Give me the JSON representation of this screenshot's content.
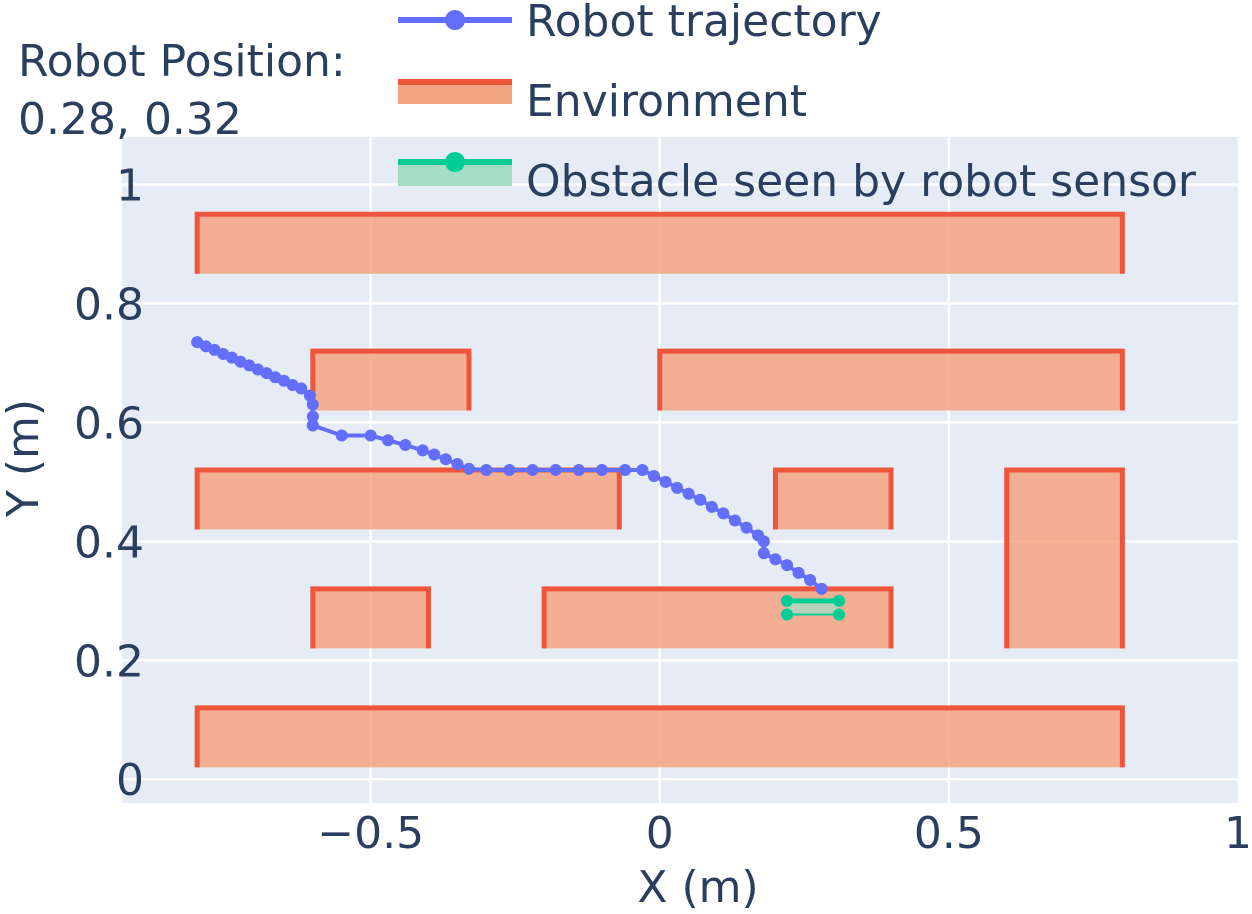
{
  "robot_position": {
    "label": "Robot Position:",
    "value": "0.28, 0.32"
  },
  "colors": {
    "plot_bg": "#e5ecf6",
    "grid": "#ffffff",
    "text": "#2a3f5f",
    "trajectory": "#636efa",
    "environment_line": "#ef553b",
    "environment_fill": "#f4a582",
    "obstacle_line": "#00cc96",
    "obstacle_fill": "#a3ddc6"
  },
  "chart_data": {
    "type": "scatter",
    "xlabel": "X (m)",
    "ylabel": "Y (m)",
    "xlim": [
      -0.93,
      1.0
    ],
    "ylim": [
      -0.04,
      1.08
    ],
    "grid": true,
    "legend_position": "top",
    "x_ticks": [
      {
        "value": -0.5,
        "label": "−0.5"
      },
      {
        "value": 0,
        "label": "0"
      },
      {
        "value": 0.5,
        "label": "0.5"
      },
      {
        "value": 1,
        "label": "1"
      }
    ],
    "y_ticks": [
      {
        "value": 0,
        "label": "0"
      },
      {
        "value": 0.2,
        "label": "0.2"
      },
      {
        "value": 0.4,
        "label": "0.4"
      },
      {
        "value": 0.6,
        "label": "0.6"
      },
      {
        "value": 0.8,
        "label": "0.8"
      },
      {
        "value": 1,
        "label": "1"
      }
    ],
    "legend": [
      {
        "name": "Robot trajectory",
        "kind": "line-marker"
      },
      {
        "name": "Environment",
        "kind": "fill"
      },
      {
        "name": "Obstacle seen by robot sensor",
        "kind": "fill-marker"
      }
    ],
    "series": [
      {
        "name": "Robot trajectory",
        "type": "line+markers",
        "x": [
          -0.8,
          -0.785,
          -0.77,
          -0.755,
          -0.74,
          -0.725,
          -0.71,
          -0.695,
          -0.68,
          -0.665,
          -0.65,
          -0.635,
          -0.62,
          -0.605,
          -0.6,
          -0.6,
          -0.6,
          -0.6,
          -0.55,
          -0.5,
          -0.47,
          -0.44,
          -0.41,
          -0.39,
          -0.37,
          -0.35,
          -0.33,
          -0.3,
          -0.26,
          -0.22,
          -0.18,
          -0.14,
          -0.1,
          -0.06,
          -0.03,
          -0.01,
          0.01,
          0.03,
          0.05,
          0.07,
          0.09,
          0.11,
          0.13,
          0.15,
          0.17,
          0.18,
          0.18,
          0.2,
          0.22,
          0.24,
          0.26,
          0.28
        ],
        "y": [
          0.735,
          0.728,
          0.722,
          0.715,
          0.709,
          0.702,
          0.696,
          0.689,
          0.683,
          0.676,
          0.67,
          0.663,
          0.657,
          0.645,
          0.63,
          0.61,
          0.595,
          0.595,
          0.578,
          0.578,
          0.57,
          0.562,
          0.553,
          0.546,
          0.538,
          0.53,
          0.522,
          0.52,
          0.52,
          0.52,
          0.52,
          0.52,
          0.52,
          0.52,
          0.52,
          0.51,
          0.5,
          0.49,
          0.48,
          0.47,
          0.458,
          0.447,
          0.435,
          0.423,
          0.41,
          0.4,
          0.38,
          0.37,
          0.36,
          0.347,
          0.335,
          0.32
        ]
      }
    ],
    "environment": [
      {
        "x0": -0.8,
        "x1": 0.8,
        "y0": 0.85,
        "y1": 0.95
      },
      {
        "x0": -0.6,
        "x1": -0.33,
        "y0": 0.62,
        "y1": 0.72
      },
      {
        "x0": 0.0,
        "x1": 0.8,
        "y0": 0.62,
        "y1": 0.72
      },
      {
        "x0": -0.8,
        "x1": -0.07,
        "y0": 0.42,
        "y1": 0.52
      },
      {
        "x0": 0.2,
        "x1": 0.4,
        "y0": 0.42,
        "y1": 0.52
      },
      {
        "x0": 0.6,
        "x1": 0.8,
        "y0": 0.22,
        "y1": 0.52
      },
      {
        "x0": -0.6,
        "x1": -0.4,
        "y0": 0.22,
        "y1": 0.32
      },
      {
        "x0": -0.2,
        "x1": 0.4,
        "y0": 0.22,
        "y1": 0.32
      },
      {
        "x0": -0.8,
        "x1": 0.8,
        "y0": 0.02,
        "y1": 0.12
      }
    ],
    "obstacle": {
      "x": [
        0.22,
        0.31,
        0.31,
        0.22
      ],
      "y": [
        0.3,
        0.3,
        0.277,
        0.277
      ]
    }
  }
}
